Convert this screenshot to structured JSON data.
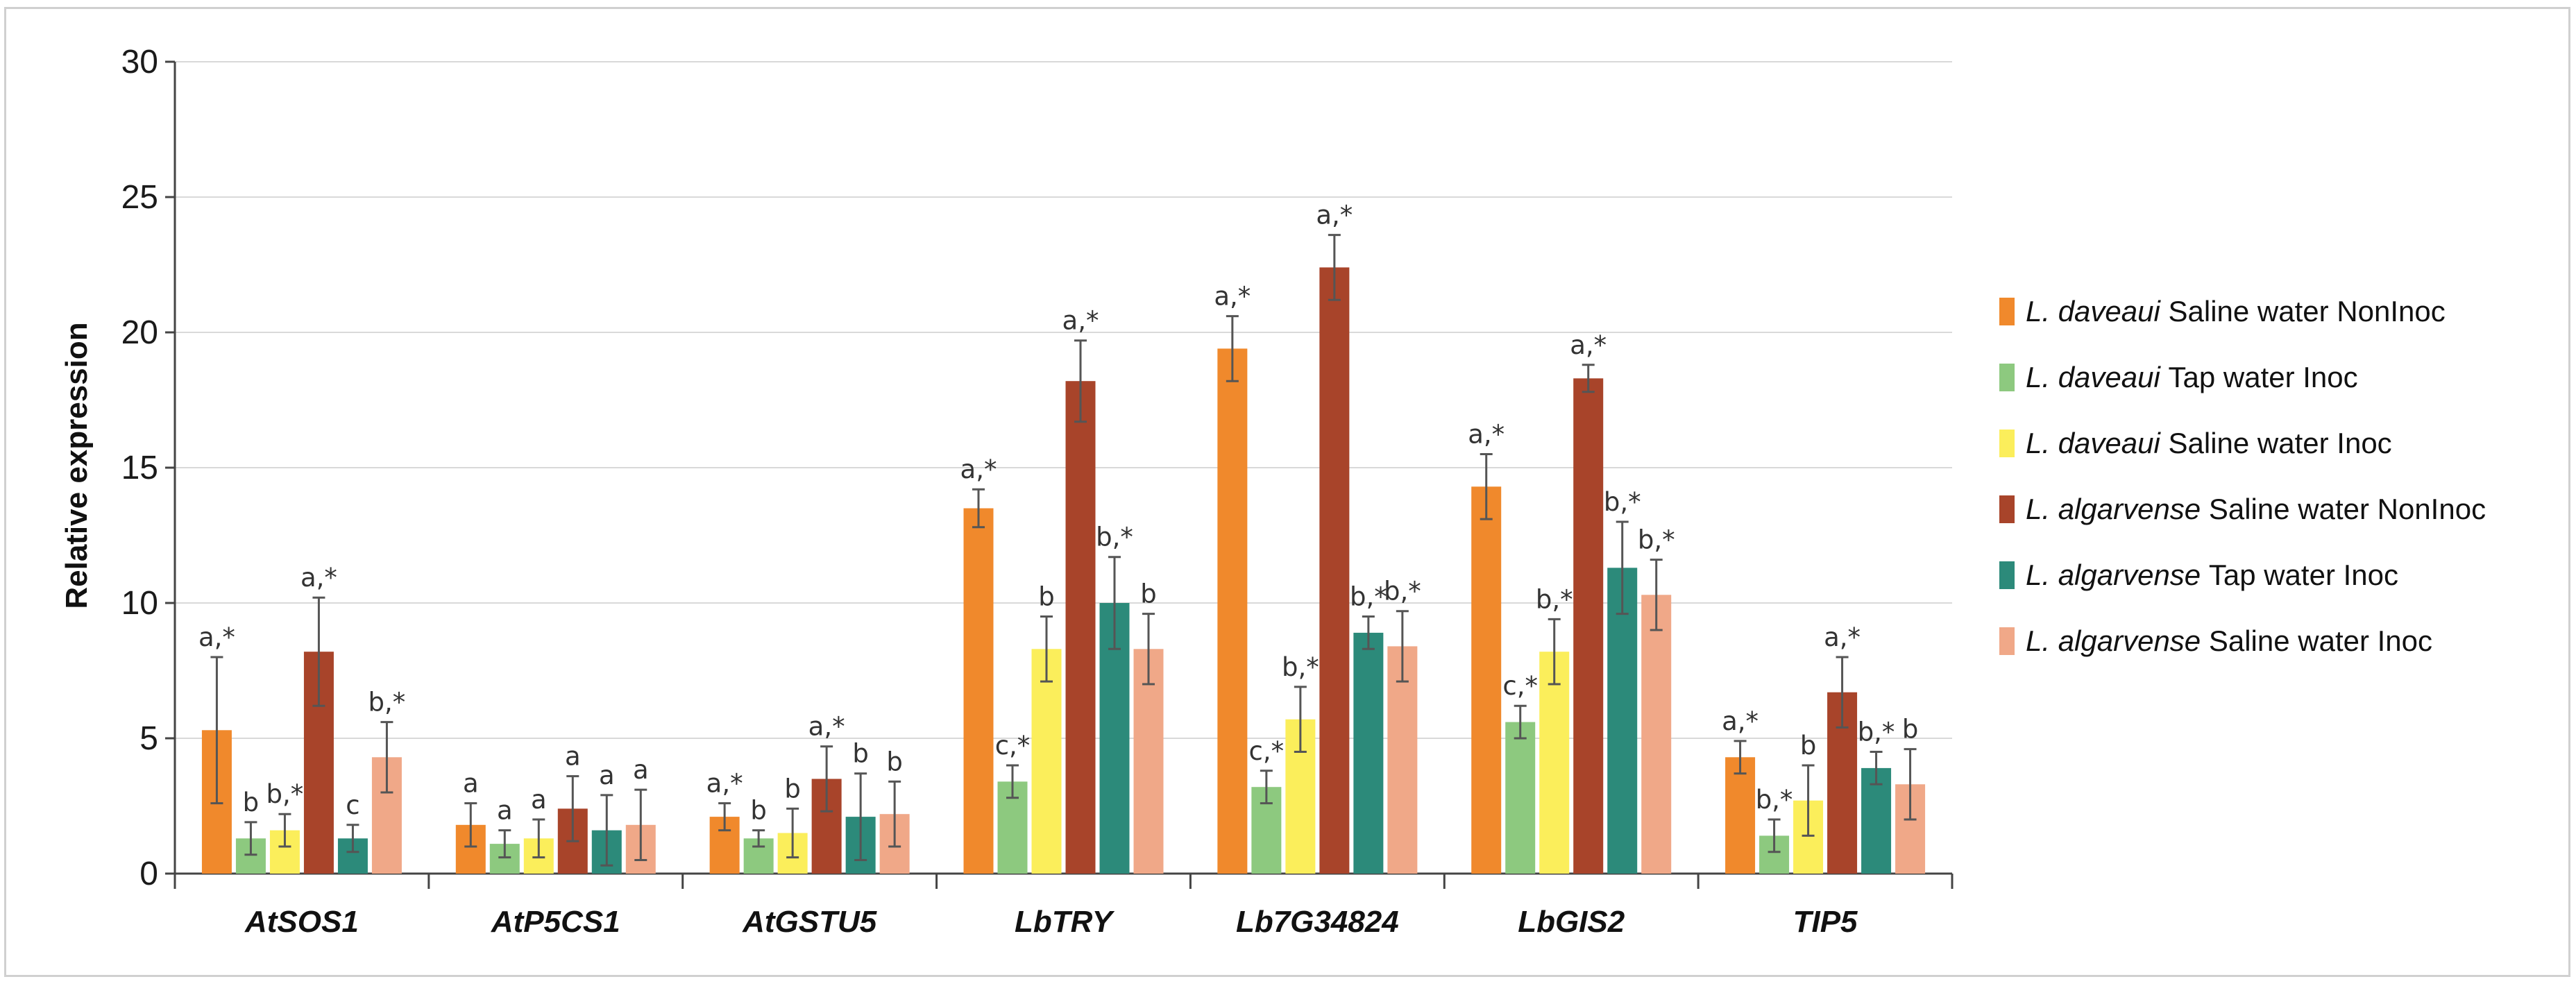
{
  "chart_data": {
    "type": "bar",
    "title": "",
    "xlabel": "",
    "ylabel": "Relative expression",
    "ylim": [
      0,
      30
    ],
    "yticks": [
      0,
      5,
      10,
      15,
      20,
      25,
      30
    ],
    "grid": true,
    "legend_position": "right",
    "categories": [
      "AtSOS1",
      "AtP5CS1",
      "AtGSTU5",
      "LbTRY",
      "Lb7G34824",
      "LbGIS2",
      "TIP5"
    ],
    "series": [
      {
        "name": "L. daveaui Saline water NonInoc",
        "species": "L. daveaui",
        "condition": "Saline water NonInoc",
        "color": "#F0892C",
        "values": [
          5.3,
          1.8,
          2.1,
          13.5,
          19.4,
          14.3,
          4.3
        ],
        "errors": [
          2.7,
          0.8,
          0.5,
          0.7,
          1.2,
          1.2,
          0.6
        ],
        "labels": [
          "a,*",
          "a",
          "a,*",
          "a,*",
          "a,*",
          "a,*",
          "a,*"
        ]
      },
      {
        "name": "L. daveaui Tap water Inoc",
        "species": "L. daveaui",
        "condition": "Tap water Inoc",
        "color": "#8DC97F",
        "values": [
          1.3,
          1.1,
          1.3,
          3.4,
          3.2,
          5.6,
          1.4
        ],
        "errors": [
          0.6,
          0.5,
          0.3,
          0.6,
          0.6,
          0.6,
          0.6
        ],
        "labels": [
          "b",
          "a",
          "b",
          "c,*",
          "c,*",
          "c,*",
          "b,*"
        ]
      },
      {
        "name": "L. daveaui Saline water Inoc",
        "species": "L. daveaui",
        "condition": "Saline water Inoc",
        "color": "#FBEE5B",
        "values": [
          1.6,
          1.3,
          1.5,
          8.3,
          5.7,
          8.2,
          2.7
        ],
        "errors": [
          0.6,
          0.7,
          0.9,
          1.2,
          1.2,
          1.2,
          1.3
        ],
        "labels": [
          "b,*",
          "a",
          "b",
          "b",
          "b,*",
          "b,*",
          "b"
        ]
      },
      {
        "name": "L. algarvense Saline water NonInoc",
        "species": "L. algarvense",
        "condition": "Saline water NonInoc",
        "color": "#A8442A",
        "values": [
          8.2,
          2.4,
          3.5,
          18.2,
          22.4,
          18.3,
          6.7
        ],
        "errors": [
          2.0,
          1.2,
          1.2,
          1.5,
          1.2,
          0.5,
          1.3
        ],
        "labels": [
          "a,*",
          "a",
          "a,*",
          "a,*",
          "a,*",
          "a,*",
          "a,*"
        ]
      },
      {
        "name": "L. algarvense Tap water Inoc",
        "species": "L. algarvense",
        "condition": "Tap water Inoc",
        "color": "#2C8A7A",
        "values": [
          1.3,
          1.6,
          2.1,
          10.0,
          8.9,
          11.3,
          3.9
        ],
        "errors": [
          0.5,
          1.3,
          1.6,
          1.7,
          0.6,
          1.7,
          0.6
        ],
        "labels": [
          "c",
          "a",
          "b",
          "b,*",
          "b,*",
          "b,*",
          "b,*"
        ]
      },
      {
        "name": "L. algarvense Saline water Inoc",
        "species": "L. algarvense",
        "condition": "Saline water Inoc",
        "color": "#F0A888",
        "values": [
          4.3,
          1.8,
          2.2,
          8.3,
          8.4,
          10.3,
          3.3
        ],
        "errors": [
          1.3,
          1.3,
          1.2,
          1.3,
          1.3,
          1.3,
          1.3
        ],
        "labels": [
          "b,*",
          "a",
          "b",
          "b",
          "b,*",
          "b,*",
          "b"
        ]
      }
    ]
  },
  "colors": {
    "grid": "#d9d9d9",
    "axis": "#444444",
    "error_bar": "#555555"
  }
}
